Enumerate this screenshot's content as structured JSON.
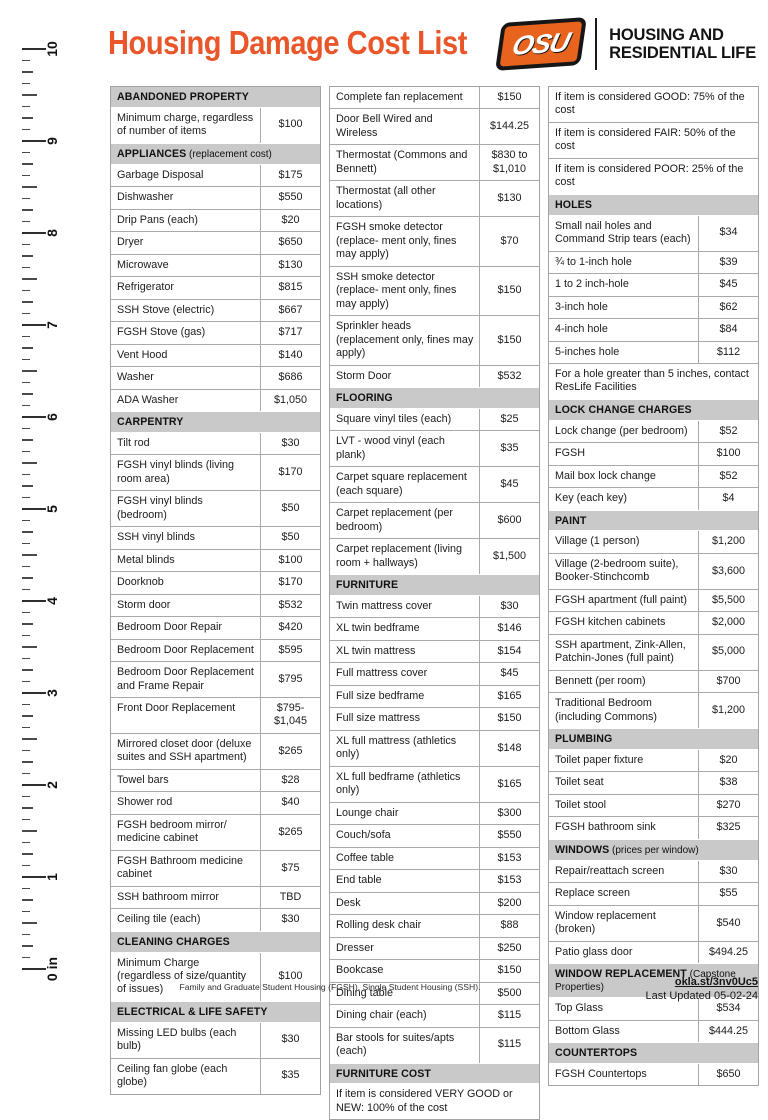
{
  "header": {
    "title": "Housing Damage Cost List",
    "logo_text": "OSU",
    "org_line1": "HOUSING AND",
    "org_line2": "RESIDENTIAL LIFE"
  },
  "colors": {
    "accent_orange": "#e8562a",
    "section_header_bg": "#c9c9c9",
    "table_border": "#a9a9a9"
  },
  "ruler": {
    "unit_label": "in",
    "labels": [
      "10",
      "9",
      "8",
      "7",
      "6",
      "5",
      "4",
      "3",
      "2",
      "1",
      "0 in"
    ],
    "inches": 10
  },
  "columns": [
    [
      {
        "t": "sec",
        "label": "ABANDONED PROPERTY",
        "sub": ""
      },
      {
        "t": "row",
        "item": "Minimum charge, regardless of number of items",
        "price": "$100"
      },
      {
        "t": "sec",
        "label": "APPLIANCES",
        "sub": "(replacement cost)"
      },
      {
        "t": "row",
        "item": "Garbage Disposal",
        "price": "$175"
      },
      {
        "t": "row",
        "item": "Dishwasher",
        "price": "$550"
      },
      {
        "t": "row",
        "item": "Drip Pans (each)",
        "price": "$20"
      },
      {
        "t": "row",
        "item": "Dryer",
        "price": "$650"
      },
      {
        "t": "row",
        "item": "Microwave",
        "price": "$130"
      },
      {
        "t": "row",
        "item": "Refrigerator",
        "price": "$815"
      },
      {
        "t": "row",
        "item": "SSH Stove (electric)",
        "price": "$667"
      },
      {
        "t": "row",
        "item": "FGSH Stove (gas)",
        "price": "$717"
      },
      {
        "t": "row",
        "item": "Vent Hood",
        "price": "$140"
      },
      {
        "t": "row",
        "item": "Washer",
        "price": "$686"
      },
      {
        "t": "row",
        "item": "ADA Washer",
        "price": "$1,050"
      },
      {
        "t": "sec",
        "label": "CARPENTRY",
        "sub": ""
      },
      {
        "t": "row",
        "item": "Tilt rod",
        "price": "$30"
      },
      {
        "t": "row",
        "item": "FGSH vinyl blinds (living room area)",
        "price": "$170"
      },
      {
        "t": "row",
        "item": "FGSH vinyl blinds (bedroom)",
        "price": "$50"
      },
      {
        "t": "row",
        "item": "SSH vinyl blinds",
        "price": "$50"
      },
      {
        "t": "row",
        "item": "Metal blinds",
        "price": "$100"
      },
      {
        "t": "row",
        "item": "Doorknob",
        "price": "$170"
      },
      {
        "t": "row",
        "item": "Storm door",
        "price": "$532"
      },
      {
        "t": "row",
        "item": "Bedroom Door Repair",
        "price": "$420"
      },
      {
        "t": "row",
        "item": "Bedroom Door Replacement",
        "price": "$595"
      },
      {
        "t": "row",
        "item": "Bedroom Door Replacement and Frame Repair",
        "price": "$795"
      },
      {
        "t": "row",
        "item": "Front Door Replacement",
        "price": "$795- $1,045"
      },
      {
        "t": "row",
        "item": "Mirrored closet door (deluxe suites and SSH apartment)",
        "price": "$265"
      },
      {
        "t": "row",
        "item": "Towel bars",
        "price": "$28"
      },
      {
        "t": "row",
        "item": "Shower rod",
        "price": "$40"
      },
      {
        "t": "row",
        "item": "FGSH bedroom mirror/ medicine cabinet",
        "price": "$265"
      },
      {
        "t": "row",
        "item": "FGSH Bathroom medicine cabinet",
        "price": "$75"
      },
      {
        "t": "row",
        "item": "SSH bathroom mirror",
        "price": "TBD"
      },
      {
        "t": "row",
        "item": "Ceiling tile (each)",
        "price": "$30"
      },
      {
        "t": "sec",
        "label": "CLEANING CHARGES",
        "sub": ""
      },
      {
        "t": "row",
        "item": "Minimum Charge (regardless of size/quantity of issues)",
        "price": "$100"
      },
      {
        "t": "sec",
        "label": "ELECTRICAL & LIFE SAFETY",
        "sub": ""
      },
      {
        "t": "row",
        "item": "Missing LED bulbs (each bulb)",
        "price": "$30"
      },
      {
        "t": "row",
        "item": "Ceiling fan globe (each globe)",
        "price": "$35"
      }
    ],
    [
      {
        "t": "row",
        "item": "Complete fan replacement",
        "price": "$150"
      },
      {
        "t": "row",
        "item": "Door Bell Wired and Wireless",
        "price": "$144.25"
      },
      {
        "t": "row",
        "item": "Thermostat (Commons and Bennett)",
        "price": "$830 to $1,010"
      },
      {
        "t": "row",
        "item": "Thermostat (all other locations)",
        "price": "$130"
      },
      {
        "t": "row",
        "item": "FGSH smoke detector (replace- ment only, fines may apply)",
        "price": "$70"
      },
      {
        "t": "row",
        "item": "SSH smoke detector (replace- ment only, fines may apply)",
        "price": "$150"
      },
      {
        "t": "row",
        "item": "Sprinkler heads (replacement only, fines may apply)",
        "price": "$150"
      },
      {
        "t": "row",
        "item": "Storm Door",
        "price": "$532"
      },
      {
        "t": "sec",
        "label": "FLOORING",
        "sub": ""
      },
      {
        "t": "row",
        "item": "Square vinyl tiles (each)",
        "price": "$25"
      },
      {
        "t": "row",
        "item": "LVT - wood vinyl (each plank)",
        "price": "$35"
      },
      {
        "t": "row",
        "item": "Carpet square replacement (each square)",
        "price": "$45"
      },
      {
        "t": "row",
        "item": "Carpet replacement (per bedroom)",
        "price": "$600"
      },
      {
        "t": "row",
        "item": "Carpet replacement (living room + hallways)",
        "price": "$1,500"
      },
      {
        "t": "sec",
        "label": "FURNITURE",
        "sub": ""
      },
      {
        "t": "row",
        "item": "Twin mattress cover",
        "price": "$30"
      },
      {
        "t": "row",
        "item": "XL twin bedframe",
        "price": "$146"
      },
      {
        "t": "row",
        "item": "XL twin mattress",
        "price": "$154"
      },
      {
        "t": "row",
        "item": "Full mattress cover",
        "price": "$45"
      },
      {
        "t": "row",
        "item": "Full size bedframe",
        "price": "$165"
      },
      {
        "t": "row",
        "item": "Full size mattress",
        "price": "$150"
      },
      {
        "t": "row",
        "item": "XL full mattress (athletics only)",
        "price": "$148"
      },
      {
        "t": "row",
        "item": "XL full bedframe (athletics only)",
        "price": "$165"
      },
      {
        "t": "row",
        "item": "Lounge chair",
        "price": "$300"
      },
      {
        "t": "row",
        "item": "Couch/sofa",
        "price": "$550"
      },
      {
        "t": "row",
        "item": "Coffee table",
        "price": "$153"
      },
      {
        "t": "row",
        "item": "End table",
        "price": "$153"
      },
      {
        "t": "row",
        "item": "Desk",
        "price": "$200"
      },
      {
        "t": "row",
        "item": "Rolling desk chair",
        "price": "$88"
      },
      {
        "t": "row",
        "item": "Dresser",
        "price": "$250"
      },
      {
        "t": "row",
        "item": "Bookcase",
        "price": "$150"
      },
      {
        "t": "row",
        "item": "Dining table",
        "price": "$500"
      },
      {
        "t": "row",
        "item": "Dining chair (each)",
        "price": "$115"
      },
      {
        "t": "row",
        "item": "Bar stools for suites/apts (each)",
        "price": "$115"
      },
      {
        "t": "sec",
        "label": "FURNITURE COST",
        "sub": ""
      },
      {
        "t": "note",
        "text": "If item is considered VERY GOOD or NEW: 100% of the cost"
      }
    ],
    [
      {
        "t": "note",
        "text": "If item is considered GOOD: 75% of the cost"
      },
      {
        "t": "note",
        "text": "If item is considered FAIR: 50% of the cost"
      },
      {
        "t": "note",
        "text": "If item is considered POOR: 25% of the cost"
      },
      {
        "t": "sec",
        "label": "HOLES",
        "sub": ""
      },
      {
        "t": "row",
        "item": "Small nail holes and Command Strip tears (each)",
        "price": "$34"
      },
      {
        "t": "row",
        "item": "¾ to 1-inch hole",
        "price": "$39"
      },
      {
        "t": "row",
        "item": "1 to 2 inch-hole",
        "price": "$45"
      },
      {
        "t": "row",
        "item": "3-inch hole",
        "price": "$62"
      },
      {
        "t": "row",
        "item": "4-inch hole",
        "price": "$84"
      },
      {
        "t": "row",
        "item": "5-inches hole",
        "price": "$112"
      },
      {
        "t": "note",
        "text": "For a hole greater than 5 inches, contact ResLife Facilities"
      },
      {
        "t": "sec",
        "label": "LOCK CHANGE CHARGES",
        "sub": ""
      },
      {
        "t": "row",
        "item": "Lock change (per bedroom)",
        "price": "$52"
      },
      {
        "t": "row",
        "item": "FGSH",
        "price": "$100"
      },
      {
        "t": "row",
        "item": "Mail box lock change",
        "price": "$52"
      },
      {
        "t": "row",
        "item": "Key (each key)",
        "price": "$4"
      },
      {
        "t": "sec",
        "label": "PAINT",
        "sub": ""
      },
      {
        "t": "row",
        "item": "Village (1 person)",
        "price": "$1,200"
      },
      {
        "t": "row",
        "item": "Village (2-bedroom suite), Booker-Stinchcomb",
        "price": "$3,600"
      },
      {
        "t": "row",
        "item": "FGSH apartment (full paint)",
        "price": "$5,500"
      },
      {
        "t": "row",
        "item": "FGSH kitchen cabinets",
        "price": "$2,000"
      },
      {
        "t": "row",
        "item": "SSH apartment, Zink-Allen, Patchin-Jones (full paint)",
        "price": "$5,000"
      },
      {
        "t": "row",
        "item": "Bennett (per room)",
        "price": "$700"
      },
      {
        "t": "row",
        "item": "Traditional Bedroom (including Commons)",
        "price": "$1,200"
      },
      {
        "t": "sec",
        "label": "PLUMBING",
        "sub": ""
      },
      {
        "t": "row",
        "item": "Toilet paper fixture",
        "price": "$20"
      },
      {
        "t": "row",
        "item": "Toilet seat",
        "price": "$38"
      },
      {
        "t": "row",
        "item": "Toilet stool",
        "price": "$270"
      },
      {
        "t": "row",
        "item": "FGSH bathroom sink",
        "price": "$325"
      },
      {
        "t": "sec",
        "label": "WINDOWS",
        "sub": "(prices per window)"
      },
      {
        "t": "row",
        "item": "Repair/reattach screen",
        "price": "$30"
      },
      {
        "t": "row",
        "item": "Replace screen",
        "price": "$55"
      },
      {
        "t": "row",
        "item": "Window replacement (broken)",
        "price": "$540"
      },
      {
        "t": "row",
        "item": "Patio glass door",
        "price": "$494.25"
      },
      {
        "t": "sec",
        "label": "WINDOW REPLACEMENT",
        "sub": "(Capstone Properties)"
      },
      {
        "t": "row",
        "item": "Top Glass",
        "price": "$534"
      },
      {
        "t": "row",
        "item": "Bottom Glass",
        "price": "$444.25"
      },
      {
        "t": "sec",
        "label": "COUNTERTOPS",
        "sub": ""
      },
      {
        "t": "row",
        "item": "FGSH Countertops",
        "price": "$650"
      }
    ]
  ],
  "footer": {
    "note": "Family and Graduate Student Housing (FGSH). Single Student Housing (SSH).",
    "link": "okla.st/3nv0Uc5",
    "updated": "Last Updated 05-02-24"
  }
}
